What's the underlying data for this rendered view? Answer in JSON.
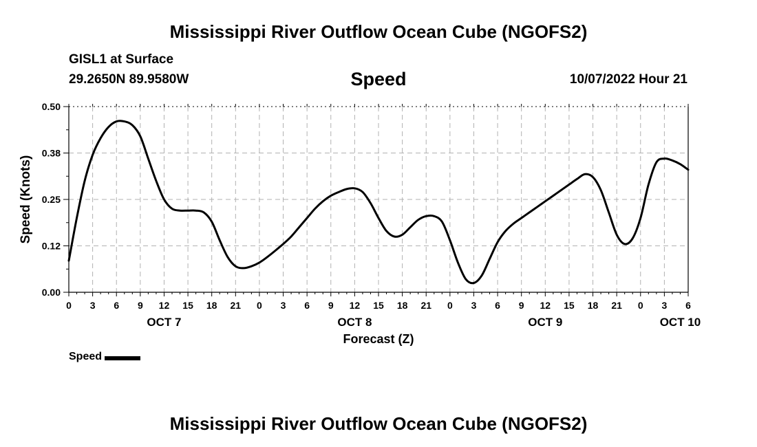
{
  "page": {
    "title_top": "Mississippi River Outflow Ocean Cube (NGOFS2)",
    "title_bottom": "Mississippi River Outflow Ocean Cube (NGOFS2)",
    "station": "GISL1 at Surface",
    "coords": "29.2650N  89.9580W",
    "datetime": "10/07/2022 Hour 21",
    "legend_label": "Speed"
  },
  "chart_data": {
    "type": "line",
    "title": "Speed",
    "xlabel": "Forecast (Z)",
    "ylabel": "Speed (Knots)",
    "ylim": [
      0,
      0.5
    ],
    "y_ticks": [
      0,
      0.125,
      0.25,
      0.375,
      0.5
    ],
    "y_tick_labels": [
      "0.00",
      "0.12",
      "0.25",
      "0.38",
      "0.50"
    ],
    "xlim": [
      0,
      78
    ],
    "x_tick_hours": [
      0,
      3,
      6,
      9,
      12,
      15,
      18,
      21,
      24,
      27,
      30,
      33,
      36,
      39,
      42,
      45,
      48,
      51,
      54,
      57,
      60,
      63,
      66,
      69,
      72,
      75,
      78
    ],
    "x_tick_labels": [
      "0",
      "3",
      "6",
      "9",
      "12",
      "15",
      "18",
      "21",
      "0",
      "3",
      "6",
      "9",
      "12",
      "15",
      "18",
      "21",
      "0",
      "3",
      "6",
      "9",
      "12",
      "15",
      "18",
      "21",
      "0",
      "3",
      "6"
    ],
    "date_labels": [
      {
        "text": "OCT 7",
        "hour": 12
      },
      {
        "text": "OCT 8",
        "hour": 36
      },
      {
        "text": "OCT 9",
        "hour": 60
      },
      {
        "text": "OCT 10",
        "hour": 77
      }
    ],
    "grid": true,
    "legend": "bottom-left",
    "series": [
      {
        "name": "Speed",
        "color": "#000000",
        "x": [
          0,
          1,
          2,
          3,
          4,
          5,
          6,
          7,
          8,
          9,
          10,
          11,
          12,
          13,
          14,
          15,
          16,
          17,
          18,
          19,
          20,
          21,
          22,
          23,
          24,
          25,
          26,
          27,
          28,
          29,
          30,
          31,
          32,
          33,
          34,
          35,
          36,
          37,
          38,
          39,
          40,
          41,
          42,
          43,
          44,
          45,
          46,
          47,
          48,
          49,
          50,
          51,
          52,
          53,
          54,
          55,
          56,
          57,
          58,
          59,
          60,
          61,
          62,
          63,
          64,
          65,
          66,
          67,
          68,
          69,
          70,
          71,
          72,
          73,
          74,
          75,
          76,
          77,
          78
        ],
        "values": [
          0.085,
          0.2,
          0.3,
          0.37,
          0.415,
          0.445,
          0.46,
          0.46,
          0.45,
          0.42,
          0.36,
          0.3,
          0.25,
          0.225,
          0.22,
          0.22,
          0.22,
          0.215,
          0.19,
          0.14,
          0.095,
          0.07,
          0.065,
          0.07,
          0.08,
          0.095,
          0.112,
          0.13,
          0.15,
          0.175,
          0.2,
          0.225,
          0.245,
          0.26,
          0.27,
          0.278,
          0.28,
          0.27,
          0.24,
          0.2,
          0.165,
          0.15,
          0.155,
          0.175,
          0.195,
          0.205,
          0.205,
          0.19,
          0.14,
          0.08,
          0.035,
          0.025,
          0.045,
          0.09,
          0.135,
          0.165,
          0.185,
          0.2,
          0.215,
          0.23,
          0.245,
          0.26,
          0.275,
          0.29,
          0.305,
          0.318,
          0.31,
          0.275,
          0.215,
          0.155,
          0.13,
          0.145,
          0.2,
          0.29,
          0.35,
          0.36,
          0.355,
          0.345,
          0.33
        ]
      }
    ]
  }
}
